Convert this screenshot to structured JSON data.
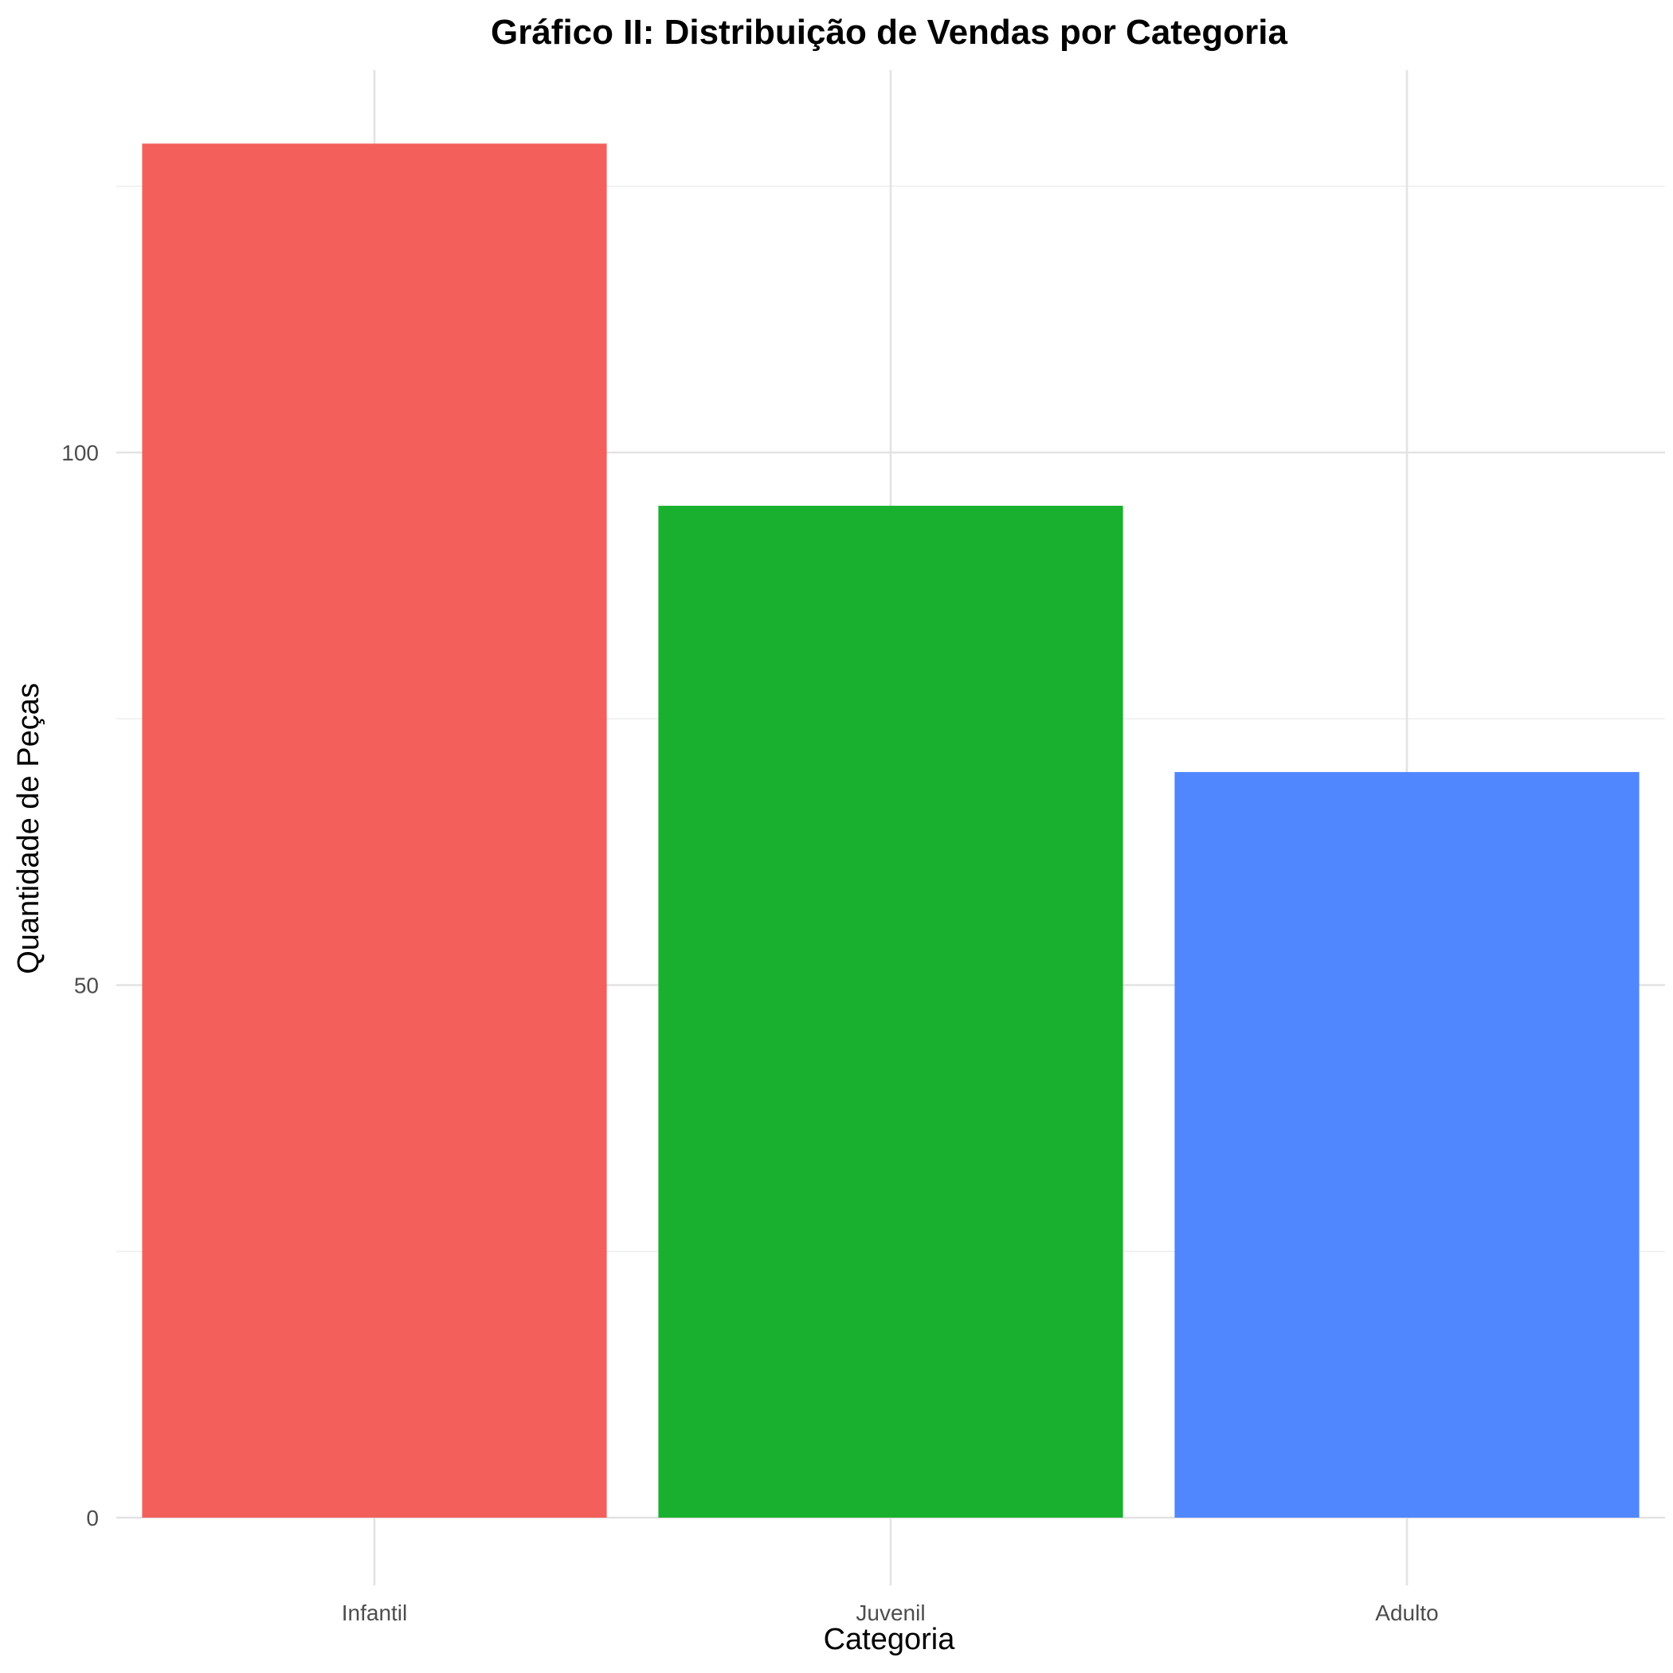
{
  "chart_data": {
    "type": "bar",
    "title": "Gráfico II: Distribuição de Vendas por Categoria",
    "xlabel": "Categoria",
    "ylabel": "Quantidade de Peças",
    "categories": [
      "Infantil",
      "Juvenil",
      "Adulto"
    ],
    "values": [
      129,
      95,
      70
    ],
    "colors": [
      "#F3605B",
      "#1AB02F",
      "#5087FF"
    ],
    "ylim": [
      0,
      130
    ],
    "yticks": [
      0,
      50,
      100
    ],
    "yticks_minor": [
      25,
      75,
      125
    ],
    "grid": true,
    "legend": "none"
  }
}
